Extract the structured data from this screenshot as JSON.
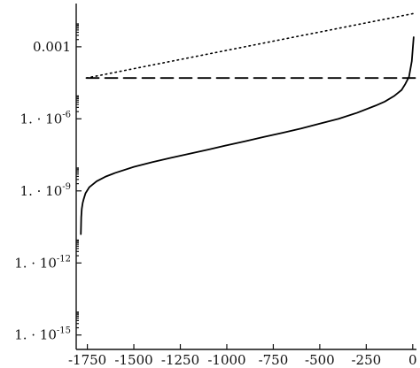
{
  "chart_data": {
    "type": "line",
    "title": "",
    "xlabel": "",
    "ylabel": "",
    "xlim": [
      -1810,
      20
    ],
    "ylim_log10": [
      -15.6,
      -1.2
    ],
    "y_scale": "log",
    "x_ticks": [
      -1750,
      -1500,
      -1250,
      -1000,
      -750,
      -500,
      -250,
      0
    ],
    "x_tick_labels": [
      "-1750",
      "-1500",
      "-1250",
      "-1000",
      "-750",
      "-500",
      "-250",
      "0"
    ],
    "y_ticks": [
      {
        "exp": -3,
        "label": "0.001",
        "mantissa": "",
        "power": ""
      },
      {
        "exp": -6,
        "label": "",
        "mantissa": "1. · 10",
        "power": "-6"
      },
      {
        "exp": -9,
        "label": "",
        "mantissa": "1. · 10",
        "power": "-9"
      },
      {
        "exp": -12,
        "label": "",
        "mantissa": "1. · 10",
        "power": "-12"
      },
      {
        "exp": -15,
        "label": "",
        "mantissa": "1. · 10",
        "power": "-15"
      }
    ],
    "grid": false,
    "series": [
      {
        "style": "solid",
        "color": "#000000",
        "x": [
          -1785,
          -1783,
          -1780,
          -1775,
          -1770,
          -1760,
          -1740,
          -1700,
          -1650,
          -1600,
          -1500,
          -1400,
          -1300,
          -1200,
          -1100,
          -1000,
          -900,
          -800,
          -700,
          -600,
          -500,
          -400,
          -300,
          -200,
          -150,
          -100,
          -60,
          -40,
          -20,
          -5,
          5
        ],
        "log10_y": [
          -10.8,
          -10.1,
          -9.75,
          -9.5,
          -9.35,
          -9.1,
          -8.85,
          -8.6,
          -8.4,
          -8.25,
          -8.0,
          -7.8,
          -7.62,
          -7.45,
          -7.28,
          -7.1,
          -6.93,
          -6.75,
          -6.58,
          -6.4,
          -6.2,
          -6.0,
          -5.75,
          -5.45,
          -5.28,
          -5.05,
          -4.8,
          -4.55,
          -4.25,
          -3.6,
          -2.6
        ]
      },
      {
        "style": "dashed",
        "color": "#000000",
        "x": [
          -1755,
          15
        ],
        "log10_y": [
          -4.3,
          -4.3
        ]
      },
      {
        "style": "dotted",
        "color": "#000000",
        "x": [
          -1755,
          15
        ],
        "log10_y": [
          -4.3,
          -1.6
        ]
      }
    ]
  }
}
